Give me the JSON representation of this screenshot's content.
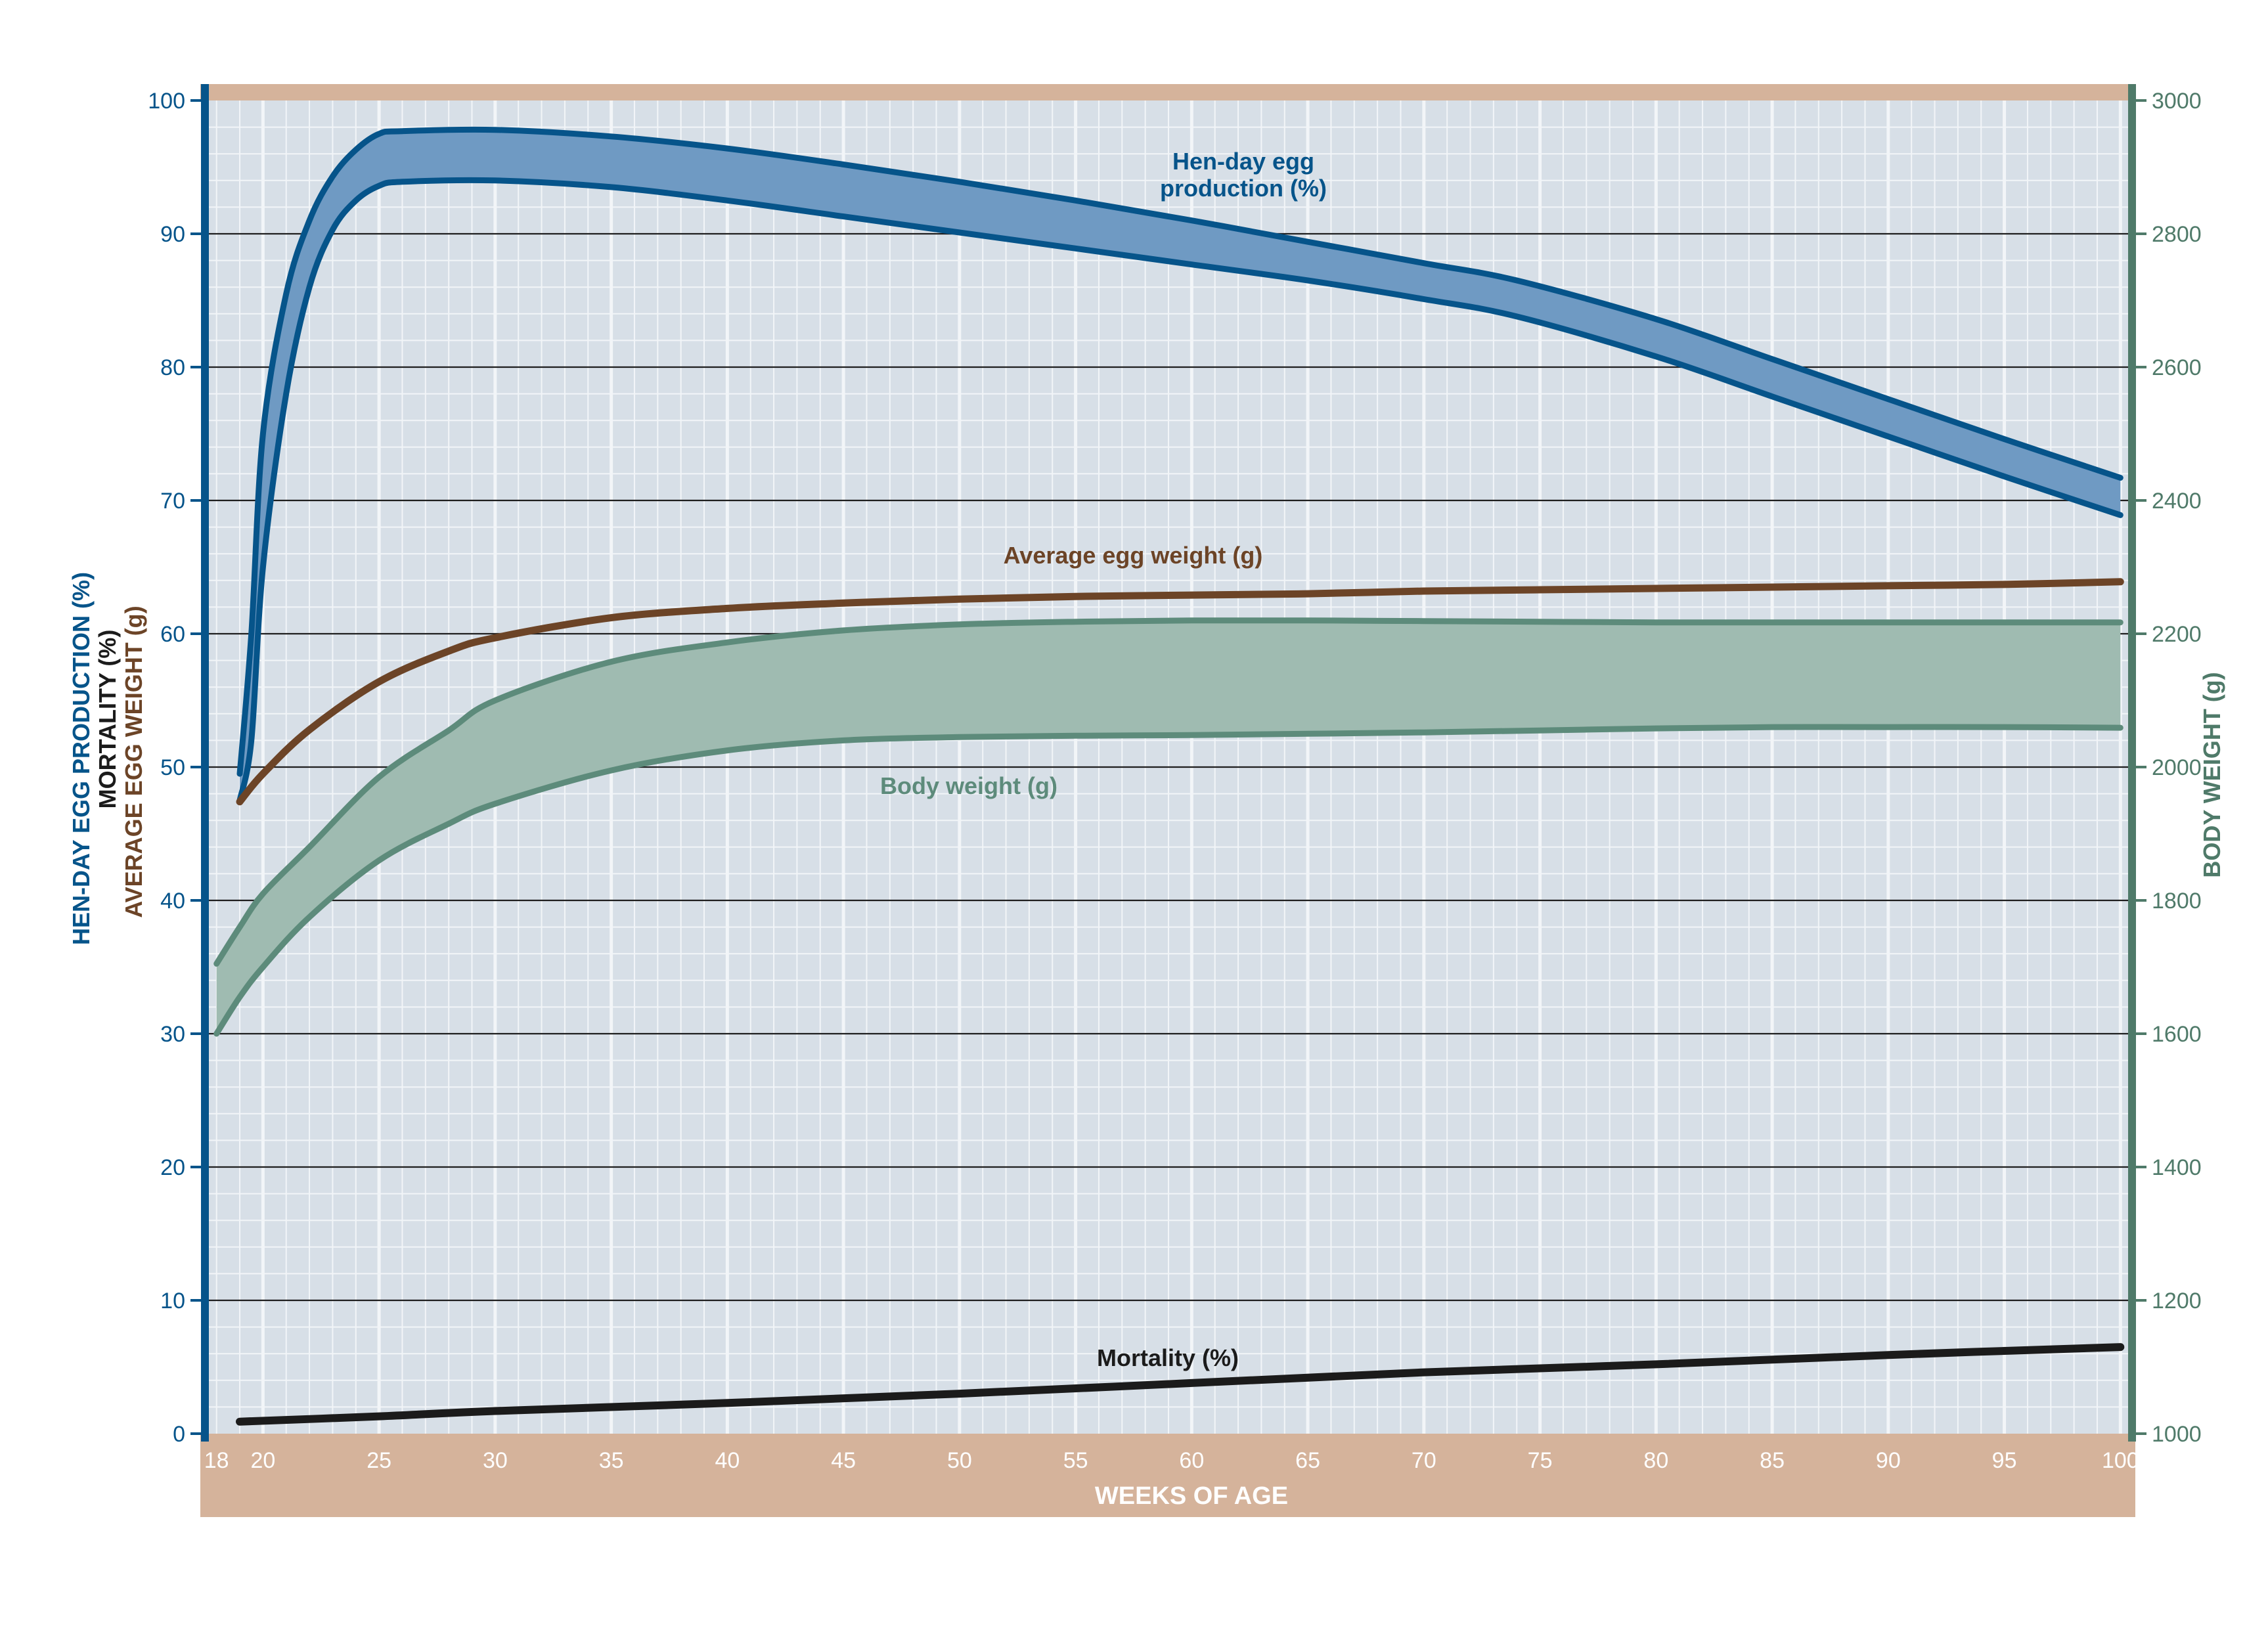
{
  "colors": {
    "plot_bg": "#d7dfe7",
    "frame_band": "#d5b39b",
    "grid_major": "#1e1e1e",
    "grid_minor": "#f2f5f8",
    "egg_production": "#06548a",
    "egg_production_fill": "#6f9ac3",
    "egg_weight": "#6c4427",
    "body_weight": "#5d8b7b",
    "body_weight_fill": "#9fbbb1",
    "mortality": "#1b1b1b",
    "axis_left": "#06548a",
    "axis_right": "#4f7a69",
    "x_label": "#ffffff"
  },
  "chart_data": {
    "type": "line",
    "xlabel": "WEEKS OF AGE",
    "x_ticks": [
      "18",
      "20",
      "25",
      "30",
      "35",
      "40",
      "45",
      "50",
      "55",
      "60",
      "65",
      "70",
      "75",
      "80",
      "85",
      "90",
      "95",
      "100"
    ],
    "xlim": [
      17.5,
      100.5
    ],
    "y_left": {
      "labels": [
        "HEN-DAY EGG PRODUCTION (%)",
        "MORTALITY (%)",
        "AVERAGE EGG WEIGHT (g)"
      ],
      "ylim": [
        0,
        100
      ],
      "ticks": [
        "0",
        "10",
        "20",
        "30",
        "40",
        "50",
        "60",
        "70",
        "80",
        "90",
        "100"
      ]
    },
    "y_right": {
      "label": "BODY WEIGHT (g)",
      "ylim": [
        1000,
        3000
      ],
      "ticks": [
        "1000",
        "1200",
        "1400",
        "1600",
        "1800",
        "2000",
        "2200",
        "2400",
        "2600",
        "2800",
        "3000"
      ]
    },
    "grid": true,
    "series": [
      {
        "name": "Hen-day egg production (%)",
        "name_lines": [
          "Hen-day egg",
          "production (%)"
        ],
        "kind": "band",
        "axis": "left",
        "x": [
          19,
          19.5,
          20,
          21,
          22,
          23,
          24,
          25,
          26,
          30,
          35,
          40,
          45,
          50,
          55,
          60,
          65,
          70,
          74,
          80,
          85,
          90,
          95,
          100
        ],
        "upper": [
          49.5,
          60,
          75,
          85.5,
          91,
          94.3,
          96.3,
          97.5,
          97.7,
          97.8,
          97.3,
          96.4,
          95.2,
          93.9,
          92.5,
          91.0,
          89.4,
          87.8,
          86.5,
          83.6,
          80.6,
          77.6,
          74.6,
          71.7
        ],
        "lower": [
          47.5,
          52,
          65,
          78,
          86,
          90.3,
          92.5,
          93.6,
          93.9,
          94.0,
          93.5,
          92.5,
          91.3,
          90.1,
          88.9,
          87.7,
          86.5,
          85.1,
          83.8,
          80.8,
          77.8,
          74.8,
          71.8,
          68.9
        ]
      },
      {
        "name": "Average egg weight (g)",
        "kind": "line",
        "axis": "left",
        "x": [
          19,
          20,
          22,
          25,
          28,
          30,
          35,
          40,
          45,
          50,
          55,
          60,
          65,
          70,
          75,
          80,
          85,
          90,
          95,
          100
        ],
        "values": [
          47.4,
          49.5,
          52.8,
          56.4,
          58.7,
          59.7,
          61.2,
          61.9,
          62.3,
          62.6,
          62.8,
          62.9,
          63.0,
          63.2,
          63.3,
          63.4,
          63.5,
          63.6,
          63.7,
          63.9
        ]
      },
      {
        "name": "Body weight (g)",
        "kind": "band",
        "axis": "right",
        "x": [
          18,
          19,
          20,
          22,
          25,
          28,
          30,
          35,
          40,
          45,
          50,
          55,
          60,
          65,
          70,
          75,
          80,
          85,
          90,
          95,
          100
        ],
        "upper": [
          1705,
          1760,
          1810,
          1880,
          1985,
          2055,
          2100,
          2158,
          2187,
          2205,
          2214,
          2218,
          2220,
          2220,
          2219,
          2218,
          2217,
          2217,
          2217,
          2217,
          2217
        ],
        "lower": [
          1600,
          1655,
          1700,
          1775,
          1860,
          1915,
          1945,
          1995,
          2025,
          2040,
          2045,
          2047,
          2048,
          2050,
          2052,
          2055,
          2058,
          2060,
          2060,
          2060,
          2059
        ]
      },
      {
        "name": "Mortality (%)",
        "kind": "line",
        "axis": "left",
        "x": [
          19,
          25,
          30,
          40,
          50,
          60,
          70,
          80,
          90,
          100
        ],
        "values": [
          0.9,
          1.3,
          1.7,
          2.3,
          3.0,
          3.8,
          4.6,
          5.2,
          5.9,
          6.5
        ]
      }
    ]
  }
}
